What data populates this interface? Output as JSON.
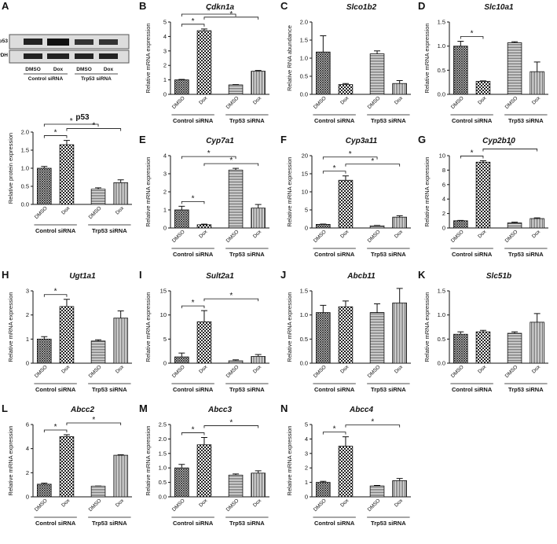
{
  "blot": {
    "panel": "A",
    "bands": [
      "p53",
      "GAPDH"
    ],
    "lanes": [
      "DMSO",
      "Dox",
      "DMSO",
      "Dox"
    ],
    "groups": [
      "Control siRNA",
      "Trp53 siRNA"
    ]
  },
  "bar_patterns": [
    "crosshatch",
    "checker",
    "hlines",
    "vlines"
  ],
  "chart_data": [
    {
      "type": "bar",
      "title": "p53",
      "ylabel": "Relative protein expression",
      "categories": [
        "DMSO",
        "Dox",
        "DMSO",
        "Dox"
      ],
      "groups": [
        "Control siRNA",
        "Trp53 siRNA"
      ],
      "values": [
        1.0,
        1.65,
        0.42,
        0.6
      ],
      "errors": [
        0.05,
        0.12,
        0.04,
        0.08
      ],
      "ylim": [
        0,
        2
      ],
      "yticks": [
        {
          "value": 0,
          "label": "0.0"
        },
        {
          "value": 0.5,
          "label": "0.5"
        },
        {
          "value": 1,
          "label": "1.0"
        },
        {
          "value": 1.5,
          "label": "1.5"
        },
        {
          "value": 2,
          "label": "2.0"
        }
      ],
      "brackets": [
        {
          "pair": [
            0,
            1
          ],
          "text": "*"
        },
        {
          "pair": [
            1,
            3
          ],
          "text": "*"
        },
        {
          "pair": [
            0,
            2
          ],
          "text": "*"
        }
      ]
    },
    {
      "type": "bar",
      "panel": "B",
      "title": "Cdkn1a",
      "ylabel": "Relative mRNA expression",
      "categories": [
        "DMSO",
        "Dox",
        "DMSO",
        "Dox"
      ],
      "groups": [
        "Control siRNA",
        "Trp53 siRNA"
      ],
      "values": [
        1.0,
        4.4,
        0.65,
        1.6
      ],
      "errors": [
        0.03,
        0.12,
        0.02,
        0.05
      ],
      "ylim": [
        0,
        5
      ],
      "yticks": [
        0,
        1,
        2,
        3,
        4,
        5
      ],
      "brackets": [
        {
          "pair": [
            0,
            1
          ],
          "text": "*"
        },
        {
          "pair": [
            1,
            3
          ],
          "text": "*"
        },
        {
          "pair": [
            0,
            2
          ],
          "text": "*"
        }
      ]
    },
    {
      "type": "bar",
      "panel": "C",
      "title": "Slco1b2",
      "ylabel": "Relative RNA abundance",
      "categories": [
        "DMSO",
        "Dox",
        "DMSO",
        "Dox"
      ],
      "groups": [
        "Control siRNA",
        "Trp53 siRNA"
      ],
      "values": [
        1.17,
        0.27,
        1.12,
        0.3
      ],
      "errors": [
        0.45,
        0.03,
        0.08,
        0.08
      ],
      "ylim": [
        0,
        2
      ],
      "yticks": [
        {
          "value": 0,
          "label": "0.0"
        },
        {
          "value": 0.5,
          "label": "0.5"
        },
        {
          "value": 1,
          "label": "1.0"
        },
        {
          "value": 1.5,
          "label": "1.5"
        },
        {
          "value": 2,
          "label": "2.0"
        }
      ],
      "brackets": []
    },
    {
      "type": "bar",
      "panel": "D",
      "title": "Slc10a1",
      "ylabel": "Relative mRNA expression",
      "categories": [
        "DMSO",
        "Dox",
        "DMSO",
        "Dox"
      ],
      "groups": [
        "Control siRNA",
        "Trp53 siRNA"
      ],
      "values": [
        1.0,
        0.27,
        1.07,
        0.47
      ],
      "errors": [
        0.1,
        0.01,
        0.02,
        0.2
      ],
      "ylim": [
        0,
        1.5
      ],
      "yticks": [
        {
          "value": 0,
          "label": "0.0"
        },
        {
          "value": 0.5,
          "label": "0.5"
        },
        {
          "value": 1,
          "label": "1.0"
        },
        {
          "value": 1.5,
          "label": "1.5"
        }
      ],
      "brackets": [
        {
          "pair": [
            0,
            1
          ],
          "text": "*"
        }
      ]
    },
    {
      "type": "bar",
      "panel": "E",
      "title": "Cyp7a1",
      "ylabel": "Relative mRNA expression",
      "categories": [
        "DMSO",
        "Dox",
        "DMSO",
        "Dox"
      ],
      "groups": [
        "Control siRNA",
        "Trp53 siRNA"
      ],
      "values": [
        1.0,
        0.18,
        3.2,
        1.1
      ],
      "errors": [
        0.2,
        0.03,
        0.1,
        0.2
      ],
      "ylim": [
        0,
        4
      ],
      "yticks": [
        0,
        1,
        2,
        3,
        4
      ],
      "brackets": [
        {
          "pair": [
            0,
            1
          ],
          "text": "*"
        },
        {
          "pair": [
            1,
            3
          ],
          "text": "*"
        },
        {
          "pair": [
            0,
            2
          ],
          "text": "*"
        }
      ]
    },
    {
      "type": "bar",
      "panel": "F",
      "title": "Cyp3a11",
      "ylabel": "Relative mRNA expression",
      "categories": [
        "DMSO",
        "Dox",
        "DMSO",
        "Dox"
      ],
      "groups": [
        "Control siRNA",
        "Trp53 siRNA"
      ],
      "values": [
        1.0,
        13.2,
        0.6,
        3.0
      ],
      "errors": [
        0.1,
        1.2,
        0.1,
        0.4
      ],
      "ylim": [
        0,
        20
      ],
      "yticks": [
        0,
        5,
        10,
        15,
        20
      ],
      "brackets": [
        {
          "pair": [
            0,
            1
          ],
          "text": "*"
        },
        {
          "pair": [
            1,
            3
          ],
          "text": "*"
        },
        {
          "pair": [
            0,
            2
          ],
          "text": "*"
        }
      ]
    },
    {
      "type": "bar",
      "panel": "G",
      "title": "Cyp2b10",
      "ylabel": "Relative mRNA expression",
      "categories": [
        "DMSO",
        "Dox",
        "DMSO",
        "Dox"
      ],
      "groups": [
        "Control siRNA",
        "Trp53 siRNA"
      ],
      "values": [
        1.0,
        9.1,
        0.7,
        1.3
      ],
      "errors": [
        0.05,
        0.2,
        0.1,
        0.1
      ],
      "ylim": [
        0,
        10
      ],
      "yticks": [
        0,
        2,
        4,
        6,
        8,
        10
      ],
      "brackets": [
        {
          "pair": [
            0,
            1
          ],
          "text": "*"
        },
        {
          "pair": [
            1,
            3
          ],
          "text": "*"
        }
      ]
    },
    {
      "type": "bar",
      "panel": "H",
      "title": "Ugt1a1",
      "ylabel": "Relative mRNA expression",
      "categories": [
        "DMSO",
        "Dox",
        "DMSO",
        "Dox"
      ],
      "groups": [
        "Control siRNA",
        "Trp53 siRNA"
      ],
      "values": [
        1.0,
        2.35,
        0.92,
        1.87
      ],
      "errors": [
        0.1,
        0.3,
        0.05,
        0.3
      ],
      "ylim": [
        0,
        3
      ],
      "yticks": [
        0,
        1,
        2,
        3
      ],
      "brackets": [
        {
          "pair": [
            0,
            1
          ],
          "text": "*"
        }
      ]
    },
    {
      "type": "bar",
      "panel": "I",
      "title": "Sult2a1",
      "ylabel": "Relative mRNA expression",
      "categories": [
        "DMSO",
        "Dox",
        "DMSO",
        "Dox"
      ],
      "groups": [
        "Control siRNA",
        "Trp53 siRNA"
      ],
      "values": [
        1.3,
        8.6,
        0.5,
        1.4
      ],
      "errors": [
        0.8,
        2.3,
        0.2,
        0.4
      ],
      "ylim": [
        0,
        15
      ],
      "yticks": [
        0,
        5,
        10,
        15
      ],
      "brackets": [
        {
          "pair": [
            0,
            1
          ],
          "text": "*"
        },
        {
          "pair": [
            1,
            3
          ],
          "text": "*"
        }
      ]
    },
    {
      "type": "bar",
      "panel": "J",
      "title": "Abcb11",
      "ylabel": "Relative mRNA expression",
      "categories": [
        "DMSO",
        "Dox",
        "DMSO",
        "Dox"
      ],
      "groups": [
        "Control siRNA",
        "Trp53 siRNA"
      ],
      "values": [
        1.05,
        1.17,
        1.05,
        1.25
      ],
      "errors": [
        0.15,
        0.12,
        0.18,
        0.3
      ],
      "ylim": [
        0,
        1.5
      ],
      "yticks": [
        {
          "value": 0,
          "label": "0.0"
        },
        {
          "value": 0.5,
          "label": "0.5"
        },
        {
          "value": 1,
          "label": "1.0"
        },
        {
          "value": 1.5,
          "label": "1.5"
        }
      ],
      "brackets": []
    },
    {
      "type": "bar",
      "panel": "K",
      "title": "Slc51b",
      "ylabel": "Relative mRNA expression",
      "categories": [
        "DMSO",
        "Dox",
        "DMSO",
        "Dox"
      ],
      "groups": [
        "Control siRNA",
        "Trp53 siRNA"
      ],
      "values": [
        0.6,
        0.65,
        0.62,
        0.85
      ],
      "errors": [
        0.05,
        0.03,
        0.03,
        0.18
      ],
      "ylim": [
        0,
        1.5
      ],
      "yticks": [
        {
          "value": 0,
          "label": "0.0"
        },
        {
          "value": 0.5,
          "label": "0.5"
        },
        {
          "value": 1,
          "label": "1.0"
        },
        {
          "value": 1.5,
          "label": "1.5"
        }
      ],
      "brackets": []
    },
    {
      "type": "bar",
      "panel": "L",
      "title": "Abcc2",
      "ylabel": "Relative mRNA expression",
      "categories": [
        "DMSO",
        "Dox",
        "DMSO",
        "Dox"
      ],
      "groups": [
        "Control siRNA",
        "Trp53 siRNA"
      ],
      "values": [
        1.05,
        5.0,
        0.88,
        3.45
      ],
      "errors": [
        0.08,
        0.15,
        0.02,
        0.05
      ],
      "ylim": [
        0,
        6
      ],
      "yticks": [
        0,
        2,
        4,
        6
      ],
      "brackets": [
        {
          "pair": [
            0,
            1
          ],
          "text": "*"
        },
        {
          "pair": [
            1,
            3
          ],
          "text": "*"
        }
      ]
    },
    {
      "type": "bar",
      "panel": "M",
      "title": "Abcc3",
      "ylabel": "Relative mRNA expression",
      "categories": [
        "DMSO",
        "Dox",
        "DMSO",
        "Dox"
      ],
      "groups": [
        "Control siRNA",
        "Trp53 siRNA"
      ],
      "values": [
        1.0,
        1.8,
        0.75,
        0.82
      ],
      "errors": [
        0.12,
        0.25,
        0.04,
        0.08
      ],
      "ylim": [
        0,
        2.5
      ],
      "yticks": [
        {
          "value": 0,
          "label": "0.0"
        },
        {
          "value": 0.5,
          "label": "0.5"
        },
        {
          "value": 1,
          "label": "1.0"
        },
        {
          "value": 1.5,
          "label": "1.5"
        },
        {
          "value": 2,
          "label": "2.0"
        },
        {
          "value": 2.5,
          "label": "2.5"
        }
      ],
      "brackets": [
        {
          "pair": [
            0,
            1
          ],
          "text": "*"
        },
        {
          "pair": [
            1,
            3
          ],
          "text": "*"
        }
      ]
    },
    {
      "type": "bar",
      "panel": "N",
      "title": "Abcc4",
      "ylabel": "Relative mRNA expression",
      "categories": [
        "DMSO",
        "Dox",
        "DMSO",
        "Dox"
      ],
      "groups": [
        "Control siRNA",
        "Trp53 siRNA"
      ],
      "values": [
        1.0,
        3.5,
        0.75,
        1.12
      ],
      "errors": [
        0.07,
        0.65,
        0.04,
        0.15
      ],
      "ylim": [
        0,
        5
      ],
      "yticks": [
        0,
        1,
        2,
        3,
        4,
        5
      ],
      "brackets": [
        {
          "pair": [
            0,
            1
          ],
          "text": "*"
        },
        {
          "pair": [
            1,
            3
          ],
          "text": "*"
        }
      ]
    }
  ]
}
